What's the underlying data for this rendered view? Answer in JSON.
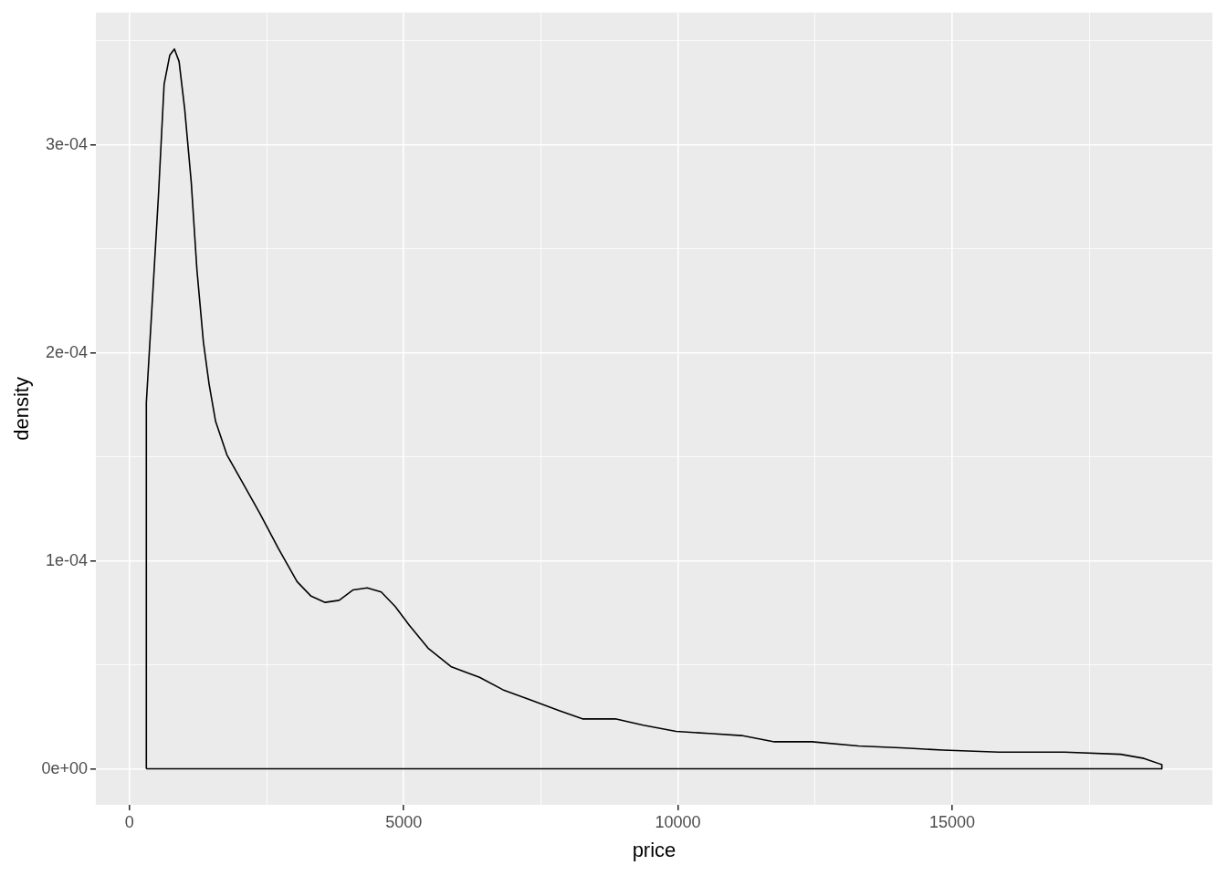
{
  "chart_data": {
    "type": "line",
    "xlabel": "price",
    "ylabel": "density",
    "marker": "none",
    "line_style": "solid",
    "grid": true,
    "series": [
      {
        "color": "#000000",
        "x": [
          307,
          307,
          410,
          529,
          631,
          734,
          819,
          904,
          1007,
          1126,
          1229,
          1348,
          1451,
          1570,
          1775,
          2031,
          2372,
          2713,
          3055,
          3311,
          3567,
          3823,
          4078,
          4334,
          4590,
          4846,
          5102,
          5444,
          5870,
          6382,
          6809,
          7321,
          7833,
          8259,
          8857,
          9369,
          9966,
          10563,
          11160,
          11758,
          12440,
          13294,
          14147,
          14829,
          15853,
          17048,
          18072,
          18498,
          18823,
          18823
        ],
        "values": [
          0,
          0.000176,
          0.000222,
          0.000276,
          0.000329,
          0.000343,
          0.000346,
          0.00034,
          0.000317,
          0.000282,
          0.00024,
          0.000205,
          0.000185,
          0.000167,
          0.000151,
          0.000139,
          0.000123,
          0.000106,
          9e-05,
          8.3e-05,
          8e-05,
          8.1e-05,
          8.6e-05,
          8.7e-05,
          8.5e-05,
          7.8e-05,
          6.9e-05,
          5.8e-05,
          4.9e-05,
          4.4e-05,
          3.8e-05,
          3.3e-05,
          2.8e-05,
          2.4e-05,
          2.4e-05,
          2.1e-05,
          1.8e-05,
          1.7e-05,
          1.6e-05,
          1.3e-05,
          1.3e-05,
          1.1e-05,
          1e-05,
          9e-06,
          8e-06,
          8e-06,
          7e-06,
          5e-06,
          2e-06,
          0
        ]
      },
      {
        "color": "#000000",
        "x": [
          307,
          18823
        ],
        "values": [
          0,
          0
        ]
      }
    ],
    "xlim": [
      -614,
      19744
    ],
    "ylim": [
      -1.73e-05,
      0.0003635
    ],
    "xticks": [
      0,
      {
        "value": 2500,
        "label": null
      },
      5000,
      {
        "value": 7500,
        "label": null
      },
      10000,
      {
        "value": 12500,
        "label": null
      },
      15000,
      {
        "value": 17500,
        "label": null
      }
    ],
    "yticks": [
      {
        "value": 0,
        "label": "0e+00"
      },
      {
        "value": 5e-05,
        "label": null
      },
      {
        "value": 0.0001,
        "label": "1e-04"
      },
      {
        "value": 0.00015,
        "label": null
      },
      {
        "value": 0.0002,
        "label": "2e-04"
      },
      {
        "value": 0.00025,
        "label": null
      },
      {
        "value": 0.0003,
        "label": "3e-04"
      },
      {
        "value": 0.00035,
        "label": null
      }
    ]
  }
}
